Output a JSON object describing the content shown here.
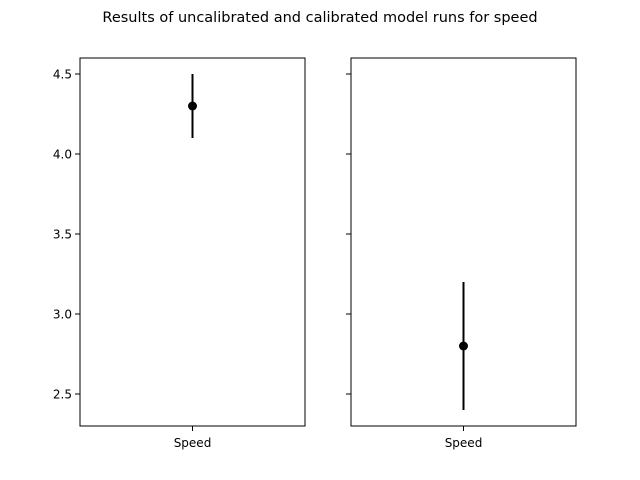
{
  "figure": {
    "title": "Results of uncalibrated and calibrated model runs for speed"
  },
  "chart_data": [
    {
      "type": "errorbar",
      "title": "",
      "xlabel": "",
      "ylabel": "",
      "categories": [
        "Speed"
      ],
      "series": [
        {
          "points": [
            {
              "x": "Speed",
              "y": 4.3,
              "lower": 4.1,
              "upper": 4.5
            }
          ]
        }
      ],
      "ylim": [
        2.3,
        4.6
      ],
      "yticks": [
        2.5,
        3.0,
        3.5,
        4.0,
        4.5
      ],
      "ytick_labels": [
        "2.5",
        "3.0",
        "3.5",
        "4.0",
        "4.5"
      ],
      "show_ytick_labels": true,
      "grid": false,
      "color": "#000000"
    },
    {
      "type": "errorbar",
      "title": "",
      "xlabel": "",
      "ylabel": "",
      "categories": [
        "Speed"
      ],
      "series": [
        {
          "points": [
            {
              "x": "Speed",
              "y": 2.8,
              "lower": 2.4,
              "upper": 3.2
            }
          ]
        }
      ],
      "ylim": [
        2.3,
        4.6
      ],
      "yticks": [
        2.5,
        3.0,
        3.5,
        4.0,
        4.5
      ],
      "ytick_labels": [
        "2.5",
        "3.0",
        "3.5",
        "4.0",
        "4.5"
      ],
      "show_ytick_labels": false,
      "grid": false,
      "color": "#000000"
    }
  ]
}
